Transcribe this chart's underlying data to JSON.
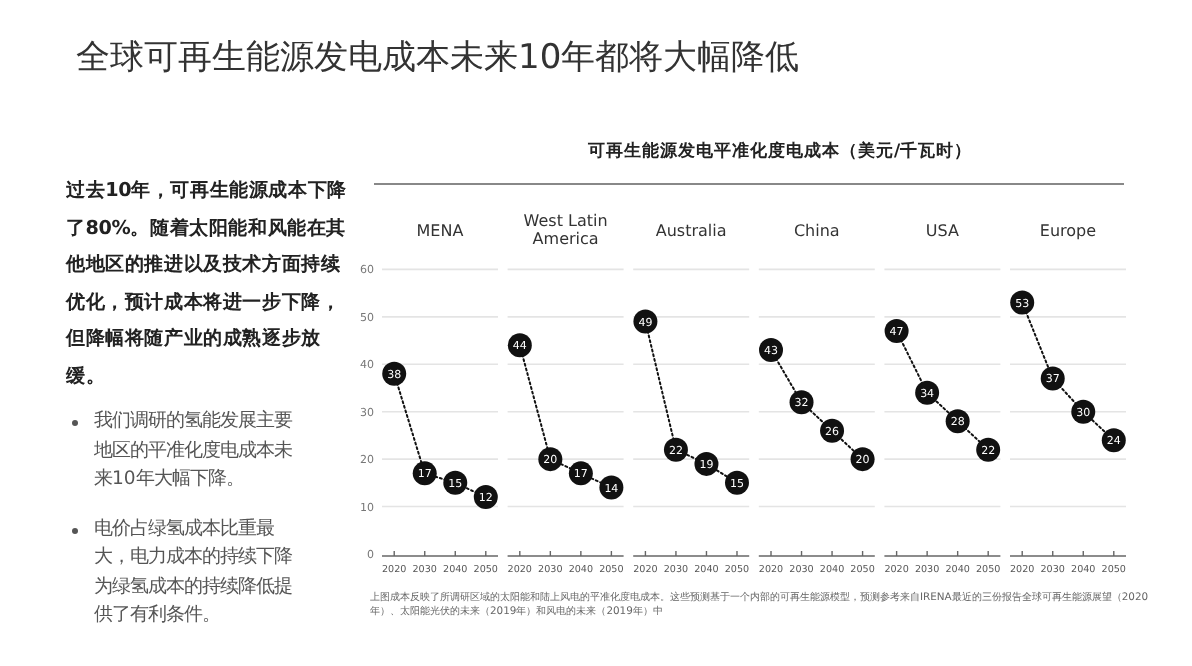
{
  "chart_data": [
    {
      "type": "other",
      "title": "全球可再生能源发电成本未来10年都将大幅降低",
      "subtitle": "可再生能源发电平准化度电成本（美元/千瓦时）",
      "annotations": [
        "过去10年，可再生能源成本下降了80%。随着太阳能和风能在其他地区的推进以及技术方面持续优化，预计成本将进一步下降，但降幅将随产业的成熟逐步放缓。",
        "我们调研的氢能发展主要地区的平准化度电成本未来10年大幅下降。",
        "电价占绿氢成本比重最大，电力成本的持续下降为绿氢成本的持续降低提供了有利条件。",
        "上图成本反映了所调研区域的太阳能和陆上风电的平准化度电成本。这些预测基于一个内部的可再生能源模型，预测参考来自IRENA最近的三份报告全球可再生能源展望（2020年）、太阳能光伏的未来（2019年）和风电的未来（2019年）中"
      ]
    },
    {
      "type": "line",
      "title": "MENA",
      "x": [
        2020,
        2030,
        2040,
        2050
      ],
      "values": [
        38,
        17,
        15,
        12
      ],
      "color": "#111111",
      "marker": "circle",
      "line_style": "dotted",
      "data_labels": true,
      "grid": "y",
      "xlim": [
        2016,
        2054
      ],
      "ylim": [
        0,
        60
      ],
      "xticks": [
        2020,
        2030,
        2040,
        2050
      ],
      "yticks": [
        0,
        10,
        20,
        30,
        40,
        50,
        60
      ]
    },
    {
      "type": "line",
      "title": "West Latin America",
      "x": [
        2020,
        2030,
        2040,
        2050
      ],
      "values": [
        44,
        20,
        17,
        14
      ],
      "color": "#111111",
      "marker": "circle",
      "line_style": "dotted",
      "data_labels": true,
      "grid": "y",
      "xlim": [
        2016,
        2054
      ],
      "ylim": [
        0,
        60
      ],
      "xticks": [
        2020,
        2030,
        2040,
        2050
      ],
      "yticks": [
        0,
        10,
        20,
        30,
        40,
        50,
        60
      ],
      "tick_labels": "x"
    },
    {
      "type": "line",
      "title": "Australia",
      "x": [
        2020,
        2030,
        2040,
        2050
      ],
      "values": [
        49,
        22,
        19,
        15
      ],
      "color": "#111111",
      "marker": "circle",
      "line_style": "dotted",
      "data_labels": true,
      "grid": "y",
      "xlim": [
        2016,
        2054
      ],
      "ylim": [
        0,
        60
      ],
      "xticks": [
        2020,
        2030,
        2040,
        2050
      ],
      "yticks": [
        0,
        10,
        20,
        30,
        40,
        50,
        60
      ],
      "tick_labels": "x"
    },
    {
      "type": "line",
      "title": "China",
      "x": [
        2020,
        2030,
        2040,
        2050
      ],
      "values": [
        43,
        32,
        26,
        20
      ],
      "color": "#111111",
      "marker": "circle",
      "line_style": "dotted",
      "data_labels": true,
      "grid": "y",
      "xlim": [
        2016,
        2054
      ],
      "ylim": [
        0,
        60
      ],
      "xticks": [
        2020,
        2030,
        2040,
        2050
      ],
      "yticks": [
        0,
        10,
        20,
        30,
        40,
        50,
        60
      ],
      "tick_labels": "x"
    },
    {
      "type": "line",
      "title": "USA",
      "x": [
        2020,
        2030,
        2040,
        2050
      ],
      "values": [
        47,
        34,
        28,
        22
      ],
      "color": "#111111",
      "marker": "circle",
      "line_style": "dotted",
      "data_labels": true,
      "grid": "y",
      "xlim": [
        2016,
        2054
      ],
      "ylim": [
        0,
        60
      ],
      "xticks": [
        2020,
        2030,
        2040,
        2050
      ],
      "yticks": [
        0,
        10,
        20,
        30,
        40,
        50,
        60
      ],
      "tick_labels": "x"
    },
    {
      "type": "line",
      "title": "Europe",
      "x": [
        2020,
        2030,
        2040,
        2050
      ],
      "values": [
        53,
        37,
        30,
        24
      ],
      "color": "#111111",
      "marker": "circle",
      "line_style": "dotted",
      "data_labels": true,
      "grid": "y",
      "xlim": [
        2016,
        2054
      ],
      "ylim": [
        0,
        60
      ],
      "xticks": [
        2020,
        2030,
        2040,
        2050
      ],
      "yticks": [
        0,
        10,
        20,
        30,
        40,
        50,
        60
      ],
      "tick_labels": "x"
    }
  ]
}
